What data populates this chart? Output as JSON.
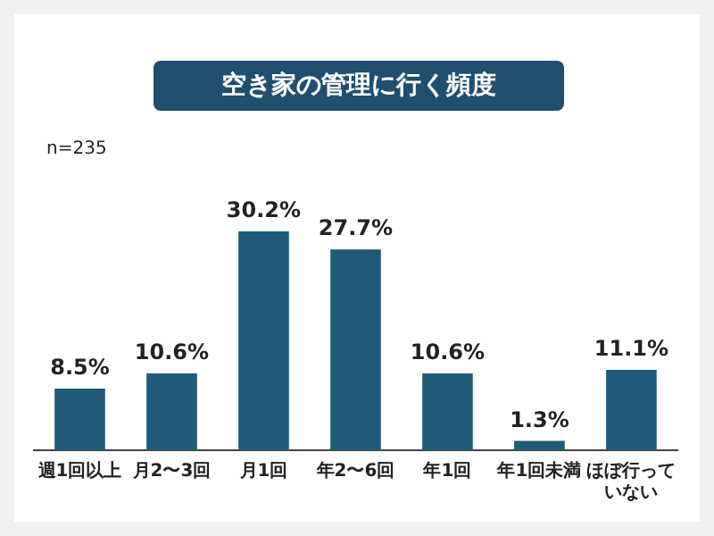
{
  "chart_data": {
    "type": "bar",
    "title": "空き家の管理に行く頻度",
    "annotations": [
      "n=235"
    ],
    "categories": [
      "週1回以上",
      "月2〜3回",
      "月1回",
      "年2〜6回",
      "年1回",
      "年1回未満",
      "ほぼ行っていない"
    ],
    "values": [
      8.5,
      10.6,
      30.2,
      27.7,
      10.6,
      1.3,
      11.1
    ],
    "value_labels": [
      "8.5%",
      "10.6%",
      "30.2%",
      "27.7%",
      "10.6%",
      "1.3%",
      "11.1%"
    ],
    "color": "#1f5a7a",
    "grid": false,
    "legend": false,
    "tick_labels": "x"
  }
}
